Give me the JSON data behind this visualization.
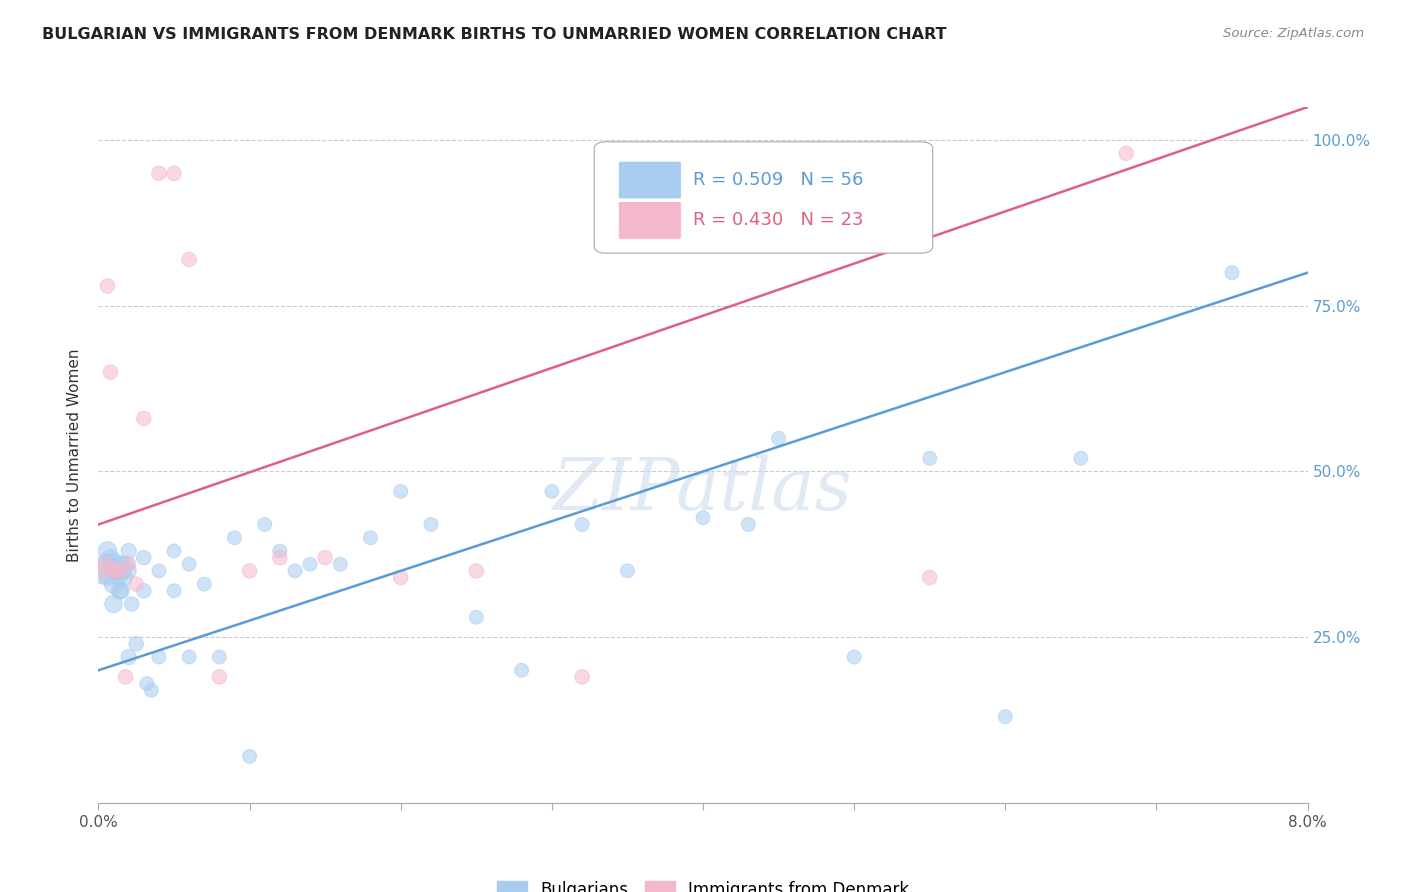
{
  "title": "BULGARIAN VS IMMIGRANTS FROM DENMARK BIRTHS TO UNMARRIED WOMEN CORRELATION CHART",
  "source": "Source: ZipAtlas.com",
  "ylabel": "Births to Unmarried Women",
  "series1_label": "Bulgarians",
  "series1_R": 0.509,
  "series1_N": 56,
  "series1_color": "#A8CCF0",
  "series1_edge_color": "#A8CCF0",
  "series1_line_color": "#5B9BD5",
  "series2_label": "Immigrants from Denmark",
  "series2_R": 0.43,
  "series2_N": 23,
  "series2_color": "#F4B8CC",
  "series2_edge_color": "#F4B8CC",
  "series2_line_color": "#E06080",
  "bg_color": "#FFFFFF",
  "watermark": "ZIPatlas",
  "xmin": 0.0,
  "xmax": 0.08,
  "ymin": 0.0,
  "ymax": 1.05,
  "blue_line_y0": 0.2,
  "blue_line_y1": 0.8,
  "pink_line_y0": 0.42,
  "pink_line_y1": 1.05,
  "bulgarians_x": [
    0.0003,
    0.0005,
    0.0006,
    0.0006,
    0.0008,
    0.001,
    0.001,
    0.001,
    0.0012,
    0.0013,
    0.0014,
    0.0015,
    0.0015,
    0.0016,
    0.0017,
    0.0018,
    0.002,
    0.002,
    0.002,
    0.0022,
    0.0025,
    0.003,
    0.003,
    0.0032,
    0.0035,
    0.004,
    0.004,
    0.005,
    0.005,
    0.006,
    0.006,
    0.007,
    0.008,
    0.009,
    0.01,
    0.011,
    0.012,
    0.013,
    0.014,
    0.016,
    0.018,
    0.02,
    0.022,
    0.025,
    0.028,
    0.03,
    0.032,
    0.035,
    0.04,
    0.043,
    0.045,
    0.05,
    0.055,
    0.06,
    0.065,
    0.075
  ],
  "bulgarians_y": [
    0.35,
    0.36,
    0.38,
    0.34,
    0.37,
    0.36,
    0.33,
    0.3,
    0.35,
    0.34,
    0.32,
    0.36,
    0.32,
    0.35,
    0.34,
    0.36,
    0.22,
    0.38,
    0.35,
    0.3,
    0.24,
    0.37,
    0.32,
    0.18,
    0.17,
    0.35,
    0.22,
    0.38,
    0.32,
    0.36,
    0.22,
    0.33,
    0.22,
    0.4,
    0.07,
    0.42,
    0.38,
    0.35,
    0.36,
    0.36,
    0.4,
    0.47,
    0.42,
    0.28,
    0.2,
    0.47,
    0.42,
    0.35,
    0.43,
    0.42,
    0.55,
    0.22,
    0.52,
    0.13,
    0.52,
    0.8
  ],
  "bulgarians_size": [
    350,
    220,
    180,
    140,
    140,
    250,
    180,
    160,
    160,
    140,
    140,
    140,
    140,
    140,
    140,
    140,
    120,
    120,
    120,
    110,
    110,
    110,
    110,
    100,
    100,
    100,
    100,
    100,
    100,
    100,
    100,
    100,
    100,
    100,
    100,
    100,
    100,
    100,
    100,
    100,
    100,
    100,
    100,
    100,
    100,
    100,
    100,
    100,
    100,
    100,
    100,
    100,
    100,
    100,
    100,
    100
  ],
  "denmark_x": [
    0.0003,
    0.0005,
    0.0006,
    0.0008,
    0.001,
    0.0012,
    0.0014,
    0.0018,
    0.002,
    0.0025,
    0.003,
    0.004,
    0.005,
    0.006,
    0.008,
    0.01,
    0.012,
    0.015,
    0.02,
    0.025,
    0.032,
    0.055,
    0.068
  ],
  "denmark_y": [
    0.35,
    0.36,
    0.78,
    0.65,
    0.35,
    0.35,
    0.35,
    0.19,
    0.36,
    0.33,
    0.58,
    0.95,
    0.95,
    0.82,
    0.19,
    0.35,
    0.37,
    0.37,
    0.34,
    0.35,
    0.19,
    0.34,
    0.98
  ],
  "denmark_size": [
    120,
    110,
    110,
    110,
    110,
    110,
    110,
    110,
    110,
    110,
    110,
    110,
    110,
    110,
    110,
    110,
    110,
    110,
    110,
    110,
    110,
    110,
    110
  ]
}
